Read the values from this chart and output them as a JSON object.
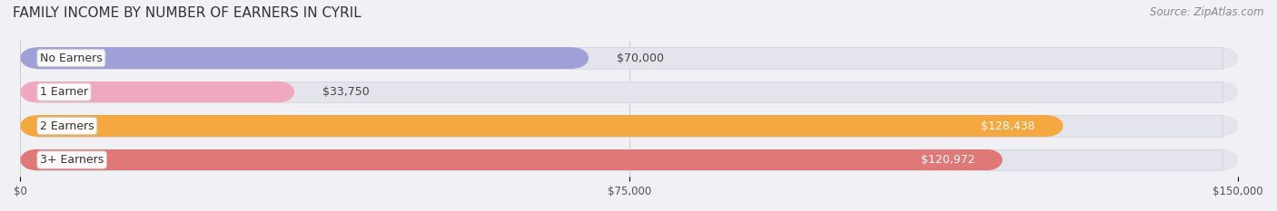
{
  "title": "FAMILY INCOME BY NUMBER OF EARNERS IN CYRIL",
  "source": "Source: ZipAtlas.com",
  "categories": [
    "No Earners",
    "1 Earner",
    "2 Earners",
    "3+ Earners"
  ],
  "values": [
    70000,
    33750,
    128438,
    120972
  ],
  "labels": [
    "$70,000",
    "$33,750",
    "$128,438",
    "$120,972"
  ],
  "bar_colors": [
    "#a0a0d8",
    "#f0a8c0",
    "#f5a840",
    "#e07878"
  ],
  "bg_color": "#f0f0f5",
  "track_color": "#e4e4ec",
  "track_edge_color": "#d0d0dc",
  "xlim": [
    0,
    150000
  ],
  "xticks": [
    0,
    75000,
    150000
  ],
  "xtick_labels": [
    "$0",
    "$75,000",
    "$150,000"
  ],
  "label_colors": [
    "#444444",
    "#444444",
    "#ffffff",
    "#ffffff"
  ],
  "title_fontsize": 11,
  "source_fontsize": 8.5,
  "bar_label_fontsize": 9,
  "cat_label_fontsize": 9,
  "bar_height": 0.62,
  "figsize": [
    14.06,
    2.33
  ],
  "dpi": 100
}
